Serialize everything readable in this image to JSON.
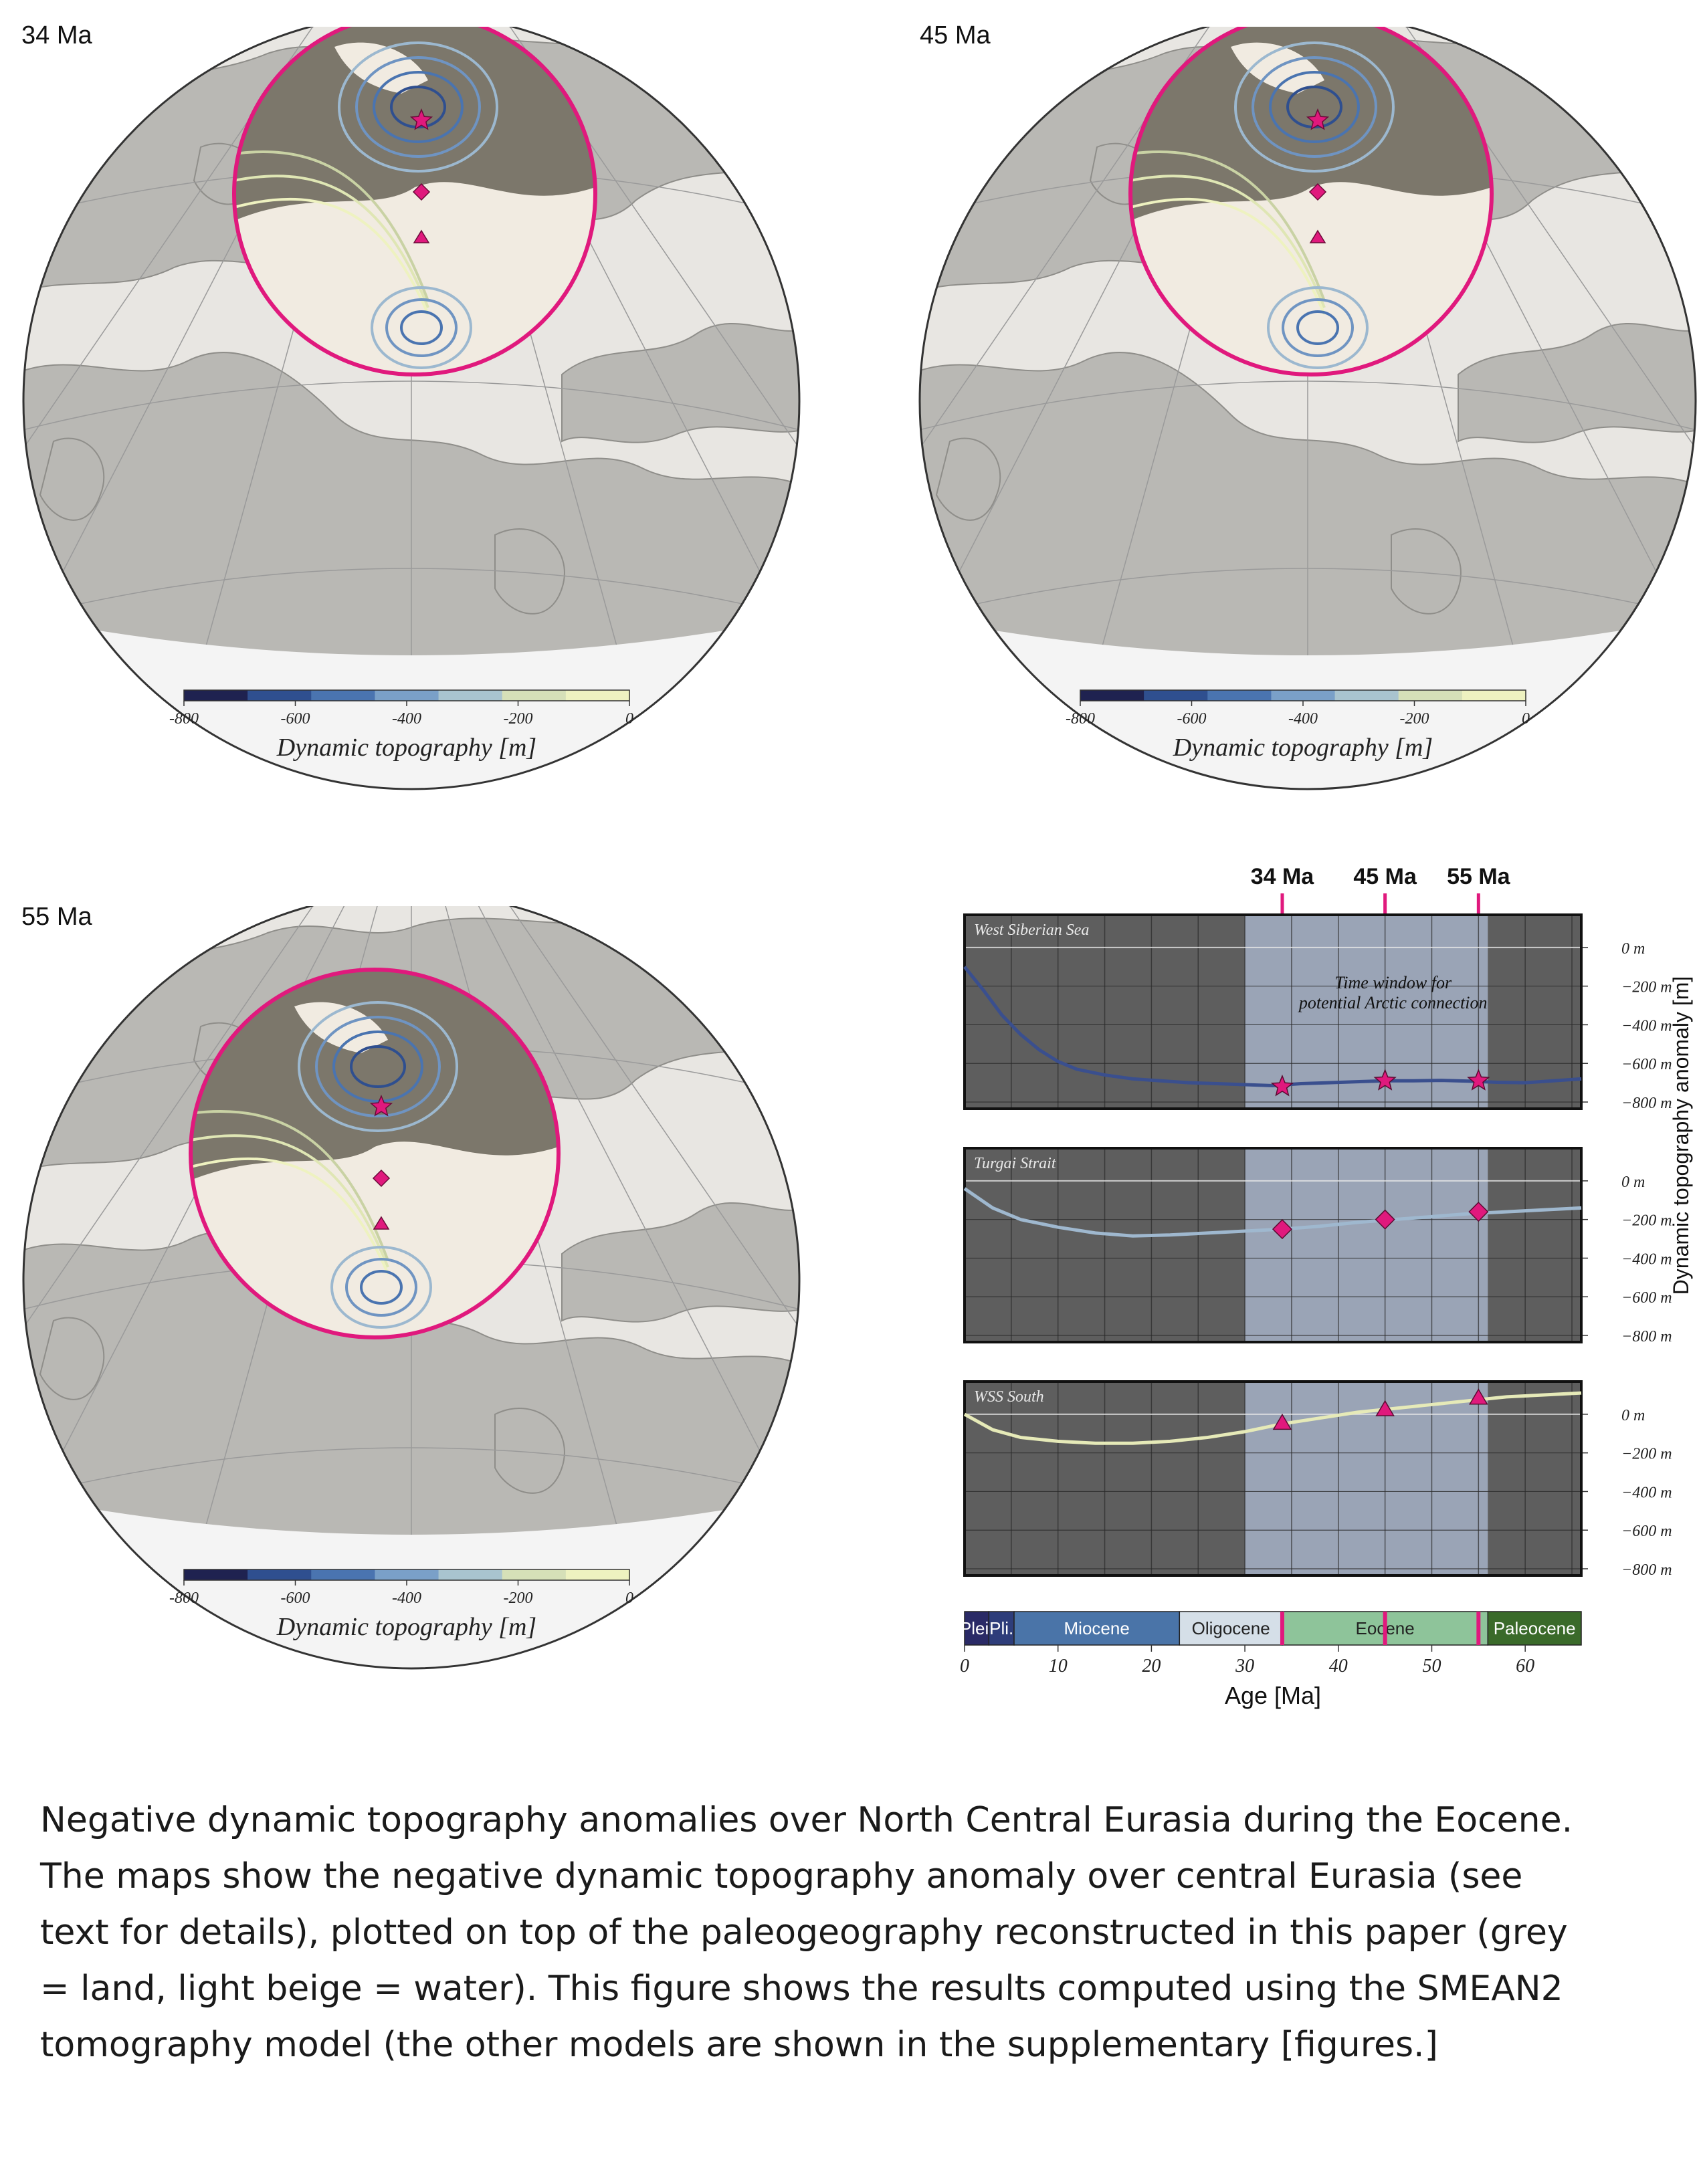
{
  "maps": [
    {
      "label": "34 Ma"
    },
    {
      "label": "45 Ma"
    },
    {
      "label": "55 Ma"
    }
  ],
  "colorbar": {
    "ticks": [
      "-800",
      "-600",
      "-400",
      "-200",
      "0"
    ],
    "label": "Dynamic topography [m]",
    "colors": [
      "#1f2250",
      "#2f4f8f",
      "#4a74b0",
      "#7aa0c8",
      "#a9c4cf",
      "#d6e0b8",
      "#eef2c0"
    ]
  },
  "chart_data": {
    "type": "line",
    "top_markers": [
      "34 Ma",
      "45 Ma",
      "55 Ma"
    ],
    "top_marker_ages": [
      34,
      45,
      55
    ],
    "window": {
      "text_line1": "Time window for",
      "text_line2": "potential Arctic connection",
      "start": 30,
      "end": 56
    },
    "ylabel": "Dynamic topography anomaly [m]",
    "xlabel": "Age [Ma]",
    "xlim": [
      0,
      66
    ],
    "xticks": [
      "0",
      "10",
      "20",
      "30",
      "40",
      "50",
      "60"
    ],
    "ylim": [
      -800,
      100
    ],
    "yticks": [
      "0 m",
      "−200 m",
      "−400 m",
      "−600 m",
      "−800 m"
    ],
    "subplots": [
      {
        "name": "West Siberian Sea",
        "marker": "star",
        "x": [
          0,
          2,
          4,
          6,
          8,
          10,
          12,
          15,
          18,
          21,
          24,
          27,
          30,
          33,
          36,
          39,
          42,
          45,
          48,
          51,
          54,
          57,
          60,
          63,
          66
        ],
        "y": [
          -100,
          -220,
          -350,
          -450,
          -530,
          -590,
          -630,
          -660,
          -680,
          -690,
          -700,
          -705,
          -710,
          -715,
          -705,
          -700,
          -695,
          -690,
          -690,
          -688,
          -692,
          -698,
          -700,
          -690,
          -680
        ],
        "points": [
          [
            34,
            -720
          ],
          [
            45,
            -690
          ],
          [
            55,
            -690
          ]
        ]
      },
      {
        "name": "Turgai Strait",
        "marker": "diamond",
        "x": [
          0,
          3,
          6,
          10,
          14,
          18,
          22,
          26,
          30,
          34,
          38,
          42,
          46,
          50,
          54,
          58,
          62,
          66
        ],
        "y": [
          -40,
          -140,
          -200,
          -240,
          -270,
          -285,
          -280,
          -270,
          -260,
          -250,
          -235,
          -215,
          -200,
          -185,
          -170,
          -160,
          -150,
          -140
        ],
        "points": [
          [
            34,
            -250
          ],
          [
            45,
            -200
          ],
          [
            55,
            -160
          ]
        ]
      },
      {
        "name": "WSS South",
        "marker": "triangle",
        "x": [
          0,
          3,
          6,
          10,
          14,
          18,
          22,
          26,
          30,
          34,
          38,
          42,
          46,
          50,
          54,
          58,
          62,
          66
        ],
        "y": [
          0,
          -80,
          -120,
          -140,
          -150,
          -150,
          -140,
          -120,
          -90,
          -50,
          -20,
          10,
          30,
          50,
          70,
          90,
          100,
          110
        ],
        "points": [
          [
            34,
            -50
          ],
          [
            45,
            20
          ],
          [
            55,
            80
          ]
        ]
      }
    ],
    "timescale": [
      {
        "name": "Plei.",
        "start": 0,
        "end": 2.6,
        "color": "#2a2a66",
        "text": "#ffffff"
      },
      {
        "name": "Pli.",
        "start": 2.6,
        "end": 5.3,
        "color": "#2e3d7a",
        "text": "#ffffff"
      },
      {
        "name": "Miocene",
        "start": 5.3,
        "end": 23,
        "color": "#4a74a8",
        "text": "#ffffff"
      },
      {
        "name": "Oligocene",
        "start": 23,
        "end": 34,
        "color": "#d5dfe8",
        "text": "#222222"
      },
      {
        "name": "Eocene",
        "start": 34,
        "end": 56,
        "color": "#8ec49a",
        "text": "#222222"
      },
      {
        "name": "Paleocene",
        "start": 56,
        "end": 66,
        "color": "#3a6a2a",
        "text": "#ffffff"
      }
    ],
    "colors": {
      "accent": "#e0197d",
      "panel_bg": "#5e5e5e",
      "window_bg": "#9aa4b6"
    }
  },
  "caption": "Negative dynamic topography anomalies over North Central Eurasia during the Eocene. The maps show the negative dynamic topography anomaly over central Eurasia (see text for details), plotted on top of the paleogeography reconstructed in this paper (grey = land, light beige = water). This figure shows the results computed using the SMEAN2 tomography model (the other models are shown in the supplementary [figures.]"
}
